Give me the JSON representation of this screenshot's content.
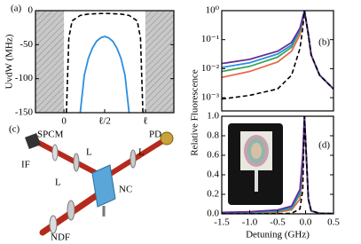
{
  "chart_data": [
    {
      "type": "line",
      "panel_label": "(a)",
      "ylabel": "UvdW (MHz)",
      "xlim": [
        -0.35,
        1.35
      ],
      "ylim": [
        -150,
        0
      ],
      "xticks": [
        0,
        {
          "value": 0.5,
          "label": "ℓ/2"
        },
        {
          "value": 1,
          "label": "ℓ"
        }
      ],
      "yticks": [
        0,
        -50,
        -100,
        -150
      ],
      "hatch": true,
      "log_y": false,
      "series": [
        {
          "color": "#2a8fe0",
          "dash": false,
          "x": [
            0.2,
            0.25,
            0.3,
            0.35,
            0.4,
            0.45,
            0.5,
            0.55,
            0.6,
            0.65,
            0.7,
            0.75,
            0.8
          ],
          "values": [
            -150,
            -95,
            -70,
            -55,
            -45,
            -40,
            -38,
            -40,
            -45,
            -55,
            -70,
            -95,
            -150
          ]
        },
        {
          "color": "#000000",
          "dash": true,
          "x": [
            0.03,
            0.06,
            0.1,
            0.2,
            0.3,
            0.5,
            0.7,
            0.8,
            0.9,
            0.94,
            0.97
          ],
          "values": [
            -150,
            -40,
            -15,
            -7,
            -5,
            -4,
            -5,
            -7,
            -15,
            -40,
            -150
          ]
        }
      ]
    },
    {
      "type": "line",
      "panel_label": "(b)",
      "ylabel": "Relative Fluorescence",
      "xlim": [
        -1.5,
        0.5
      ],
      "ylim": [
        0.00035,
        1
      ],
      "log_y": true,
      "hatch": false,
      "yticks": [
        {
          "value": 0.001,
          "label": "10⁻³"
        },
        {
          "value": 0.01,
          "label": "10⁻²"
        },
        {
          "value": 0.1,
          "label": "10⁻¹"
        },
        {
          "value": 1,
          "label": "10⁰"
        }
      ],
      "x": [
        -1.5,
        -1.0,
        -0.5,
        -0.25,
        -0.1,
        -0.05,
        -0.02,
        0.05,
        0.1,
        0.25,
        0.5
      ],
      "series": [
        {
          "color": "#e8684a",
          "dash": false,
          "values": [
            0.005,
            0.008,
            0.017,
            0.04,
            0.15,
            0.45,
            1,
            0.15,
            0.03,
            0.006,
            0.002
          ]
        },
        {
          "color": "#3aa655",
          "dash": false,
          "values": [
            0.008,
            0.012,
            0.025,
            0.055,
            0.2,
            0.5,
            1,
            0.15,
            0.03,
            0.006,
            0.002
          ]
        },
        {
          "color": "#2a8fe0",
          "dash": false,
          "values": [
            0.011,
            0.016,
            0.032,
            0.065,
            0.22,
            0.55,
            1,
            0.15,
            0.03,
            0.006,
            0.002
          ]
        },
        {
          "color": "#6a2c91",
          "dash": false,
          "values": [
            0.015,
            0.021,
            0.04,
            0.08,
            0.25,
            0.6,
            1,
            0.15,
            0.03,
            0.006,
            0.002
          ]
        },
        {
          "color": "#000000",
          "dash": true,
          "values": [
            0.0009,
            0.0012,
            0.002,
            0.006,
            0.05,
            0.25,
            1,
            0.15,
            0.03,
            0.006,
            0.002
          ]
        }
      ]
    },
    {
      "type": "line",
      "panel_label": "(d)",
      "xlabel": "Detuning (GHz)",
      "xlim": [
        -1.5,
        0.5
      ],
      "ylim": [
        0,
        1
      ],
      "log_y": false,
      "hatch": false,
      "xticks": [
        -1.5,
        {
          "value": -1,
          "label": "-1.0"
        },
        -0.5,
        {
          "value": 0,
          "label": "0.0"
        },
        0.5
      ],
      "yticks": [
        {
          "value": 0,
          "label": "0.0"
        },
        0.2,
        0.4,
        0.6,
        0.8,
        {
          "value": 1,
          "label": "1.0"
        }
      ],
      "x": [
        -1.5,
        -1.0,
        -0.5,
        -0.25,
        -0.1,
        -0.05,
        -0.02,
        0.05,
        0.1,
        0.25,
        0.5
      ],
      "series": [
        {
          "color": "#e8684a",
          "dash": false,
          "values": [
            0.005,
            0.008,
            0.017,
            0.04,
            0.15,
            0.45,
            1,
            0.15,
            0.03,
            0.006,
            0.002
          ]
        },
        {
          "color": "#3aa655",
          "dash": false,
          "values": [
            0.008,
            0.012,
            0.025,
            0.055,
            0.2,
            0.5,
            1,
            0.15,
            0.03,
            0.006,
            0.002
          ]
        },
        {
          "color": "#2a8fe0",
          "dash": false,
          "values": [
            0.011,
            0.016,
            0.032,
            0.065,
            0.22,
            0.55,
            1,
            0.15,
            0.03,
            0.006,
            0.002
          ]
        },
        {
          "color": "#6a2c91",
          "dash": false,
          "values": [
            0.015,
            0.021,
            0.04,
            0.08,
            0.25,
            0.6,
            1,
            0.15,
            0.03,
            0.006,
            0.002
          ]
        },
        {
          "color": "#000000",
          "dash": true,
          "values": [
            0.0009,
            0.0012,
            0.002,
            0.006,
            0.05,
            0.25,
            1,
            0.15,
            0.03,
            0.006,
            0.002
          ]
        }
      ]
    }
  ],
  "diagram": {
    "panel_label": "(c)",
    "labels": {
      "spcm": "SPCM",
      "pd": "PD",
      "if": "IF",
      "lens1": "L",
      "lens2": "L",
      "lens3": "L",
      "nc": "NC",
      "ndf": "NDF"
    }
  }
}
